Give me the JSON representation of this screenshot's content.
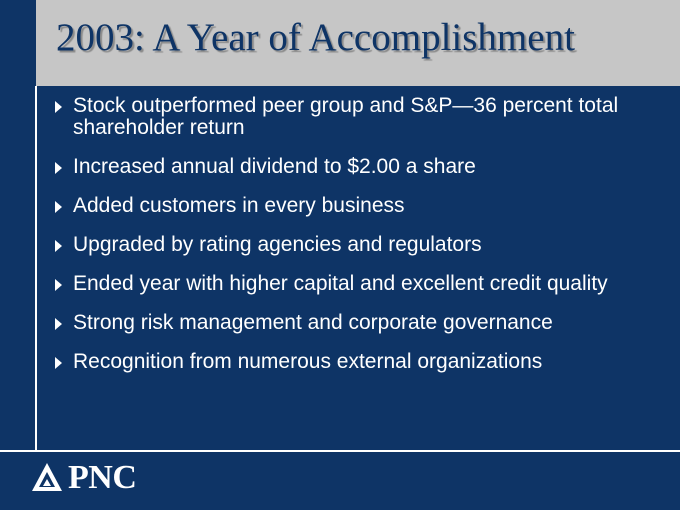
{
  "slide": {
    "title": "2003: A Year of Accomplishment",
    "bullets": [
      "Stock outperformed peer group and S&P—36 percent total shareholder return",
      "Increased annual dividend to $2.00 a share",
      "Added customers in every business",
      "Upgraded by rating agencies and regulators",
      "Ended year with higher capital and excellent credit quality",
      "Strong risk management and corporate governance",
      "Recognition from numerous external organizations"
    ],
    "logo": {
      "text": "PNC",
      "icon": "pnc-triangle-logo"
    },
    "colors": {
      "background": "#0e3466",
      "title_bar": "#c6c6c6",
      "text": "#ffffff"
    }
  }
}
